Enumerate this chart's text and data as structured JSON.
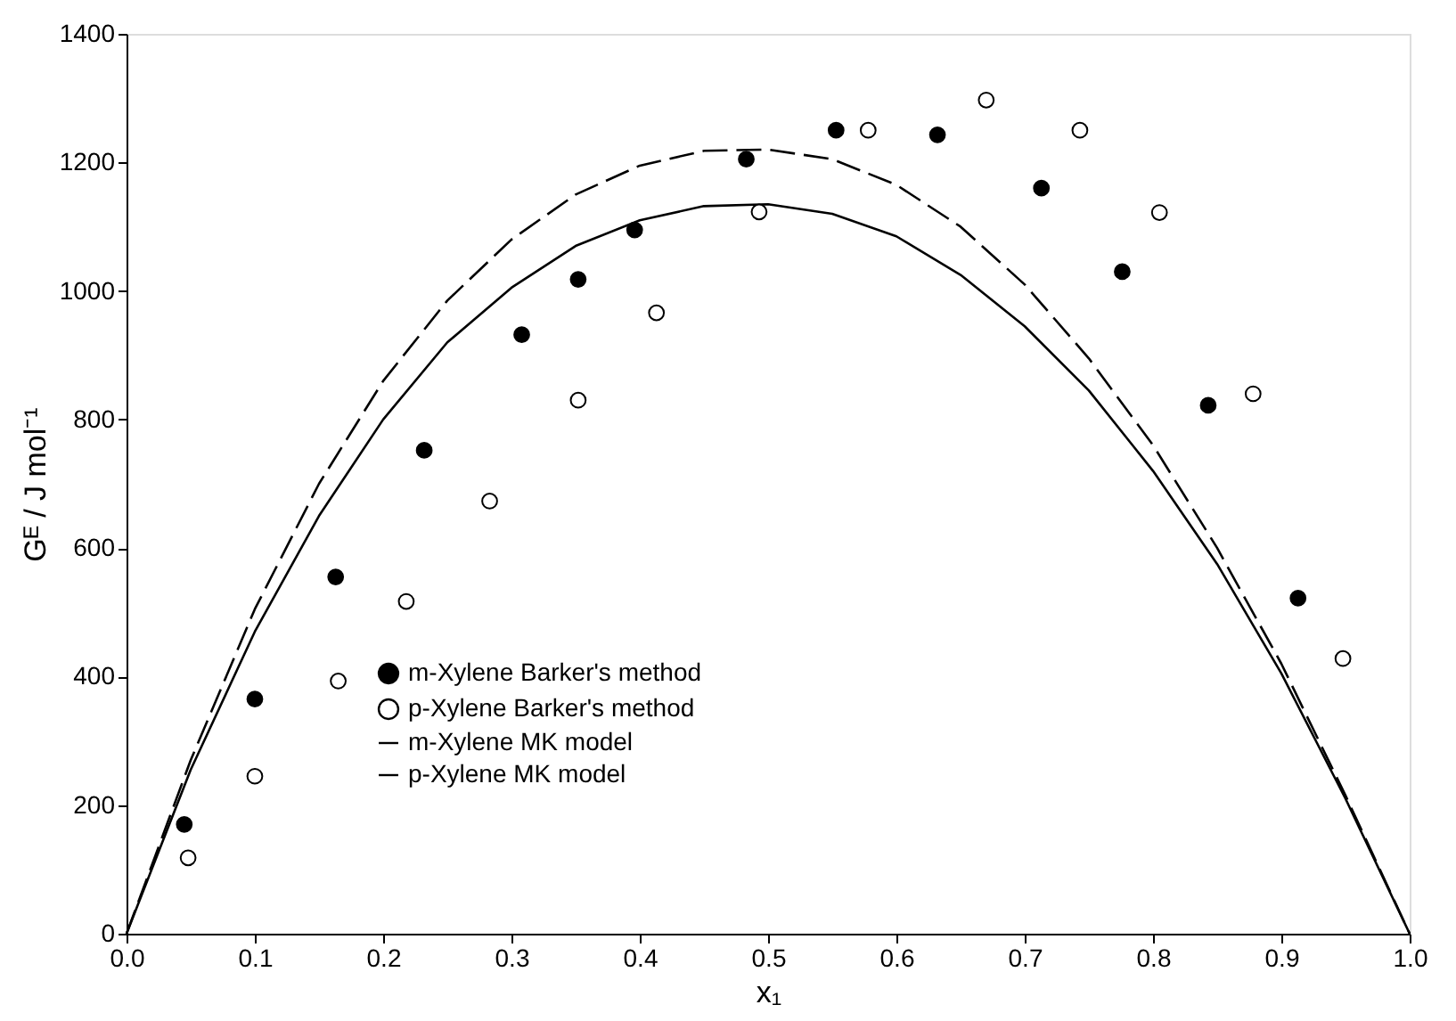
{
  "chart_data": {
    "type": "scatter",
    "xlabel": "x₁",
    "ylabel": "Gᴱ / J mol⁻¹",
    "xlim": [
      0,
      1
    ],
    "ylim": [
      0,
      1400
    ],
    "xticks": [
      {
        "value": 0,
        "label": "0.0"
      },
      {
        "value": 0.1,
        "label": "0.1"
      },
      {
        "value": 0.2,
        "label": "0.2"
      },
      {
        "value": 0.3,
        "label": "0.3"
      },
      {
        "value": 0.4,
        "label": "0.4"
      },
      {
        "value": 0.5,
        "label": "0.5"
      },
      {
        "value": 0.6,
        "label": "0.6"
      },
      {
        "value": 0.7,
        "label": "0.7"
      },
      {
        "value": 0.8,
        "label": "0.8"
      },
      {
        "value": 0.9,
        "label": "0.9"
      },
      {
        "value": 1,
        "label": "1.0"
      }
    ],
    "yticks": [
      0,
      200,
      400,
      600,
      800,
      1000,
      1200,
      1400
    ],
    "grid": false,
    "legend": "bottom",
    "series": [
      {
        "name": "m-Xylene Barker's method",
        "marker": "circle",
        "color": "#000000",
        "x": [
          0.045,
          0.1,
          0.163,
          0.232,
          0.308,
          0.352,
          0.396,
          0.483,
          0.553,
          0.632,
          0.713,
          0.776,
          0.843,
          0.913
        ],
        "values": [
          170,
          365,
          555,
          752,
          932,
          1018,
          1095,
          1205,
          1250,
          1243,
          1160,
          1030,
          822,
          522
        ]
      },
      {
        "name": "p-Xylene Barker's method",
        "marker": "circle",
        "color": "#ffffff",
        "x": [
          0.048,
          0.1,
          0.165,
          0.218,
          0.283,
          0.352,
          0.413,
          0.493,
          0.578,
          0.67,
          0.743,
          0.805,
          0.878,
          0.948
        ],
        "values": [
          118,
          245,
          393,
          517,
          673,
          830,
          966,
          1123,
          1250,
          1297,
          1250,
          1122,
          840,
          428
        ]
      },
      {
        "name": "m-Xylene MK model",
        "type": "line",
        "line_style": "dashed",
        "color": "#000000",
        "x": [
          0,
          0.05,
          0.1,
          0.15,
          0.2,
          0.25,
          0.3,
          0.35,
          0.4,
          0.45,
          0.5,
          0.55,
          0.6,
          0.65,
          0.7,
          0.75,
          0.8,
          0.85,
          0.9,
          0.95,
          1
        ],
        "values": [
          0,
          270,
          505,
          700,
          860,
          985,
          1080,
          1150,
          1195,
          1218,
          1220,
          1205,
          1165,
          1100,
          1010,
          895,
          760,
          600,
          420,
          215,
          0
        ]
      },
      {
        "name": "p-Xylene MK model",
        "type": "line",
        "line_style": "solid",
        "color": "#000000",
        "x": [
          0,
          0.05,
          0.1,
          0.15,
          0.2,
          0.25,
          0.3,
          0.35,
          0.4,
          0.45,
          0.5,
          0.55,
          0.6,
          0.65,
          0.7,
          0.75,
          0.8,
          0.85,
          0.9,
          0.95,
          1
        ],
        "values": [
          0,
          255,
          470,
          650,
          800,
          920,
          1005,
          1070,
          1110,
          1132,
          1135,
          1120,
          1085,
          1025,
          945,
          845,
          720,
          575,
          405,
          210,
          0
        ]
      }
    ]
  }
}
